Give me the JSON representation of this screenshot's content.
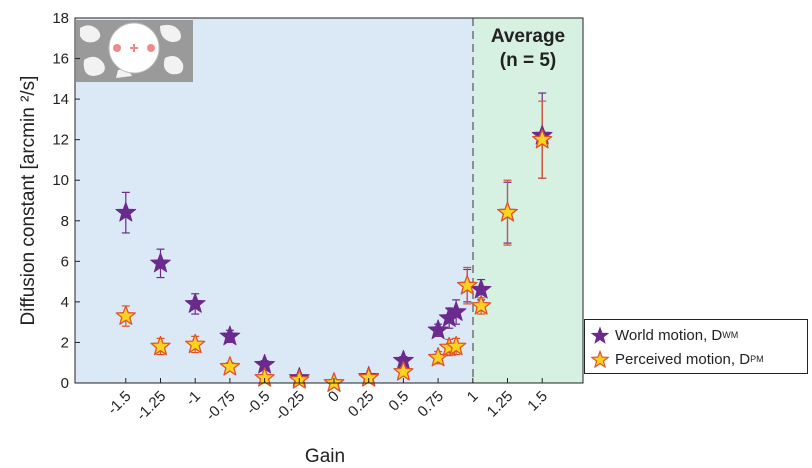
{
  "chart_data": {
    "type": "scatter",
    "xlabel": "Gain",
    "ylabel": "Diffusion constant [arcmin ²/s]",
    "ylim": [
      0,
      18
    ],
    "yticks": [
      "0",
      "2",
      "4",
      "6",
      "8",
      "10",
      "12",
      "14",
      "16",
      "18"
    ],
    "categories": [
      "-1.5",
      "-1.25",
      "-1",
      "-0.75",
      "-0.5",
      "-0.25",
      "0",
      "0.25",
      "0.5",
      "0.75",
      "1",
      "1.25",
      "1.5"
    ],
    "annotation": {
      "line1": "Average",
      "line2": "(n = 5)"
    },
    "legend_position": "right",
    "grid": false,
    "colors": {
      "world": "#6b2a8e",
      "perceived_fill": "#ffd21f",
      "perceived_edge": "#e0522b",
      "left_bg": "#dbe9f6",
      "right_bg": "#d6f0e2"
    },
    "series": [
      {
        "name": "World motion, D",
        "subscript": "WM",
        "points": [
          {
            "x": -1.5,
            "y": 8.4,
            "err": 1.0
          },
          {
            "x": -1.25,
            "y": 5.9,
            "err": 0.7
          },
          {
            "x": -1.0,
            "y": 3.9,
            "err": 0.5
          },
          {
            "x": -0.75,
            "y": 2.3,
            "err": 0.3
          },
          {
            "x": -0.5,
            "y": 0.9,
            "err": 0.2
          },
          {
            "x": -0.25,
            "y": 0.25,
            "err": 0.1
          },
          {
            "x": 0.0,
            "y": 0.0,
            "err": 0.1
          },
          {
            "x": 0.25,
            "y": 0.3,
            "err": 0.1
          },
          {
            "x": 0.5,
            "y": 1.1,
            "err": 0.2
          },
          {
            "x": 0.75,
            "y": 2.6,
            "err": 0.3
          },
          {
            "x": 0.83,
            "y": 3.2,
            "err": 0.5
          },
          {
            "x": 0.88,
            "y": 3.5,
            "err": 0.6
          },
          {
            "x": 0.96,
            "y": 4.8,
            "err": 0.8
          },
          {
            "x": 1.06,
            "y": 4.6,
            "err": 0.5
          },
          {
            "x": 1.25,
            "y": 8.4,
            "err": 1.5
          },
          {
            "x": 1.5,
            "y": 12.2,
            "err": 2.1
          }
        ]
      },
      {
        "name": "Perceived motion, D",
        "subscript": "PM",
        "points": [
          {
            "x": -1.5,
            "y": 3.3,
            "err": 0.5
          },
          {
            "x": -1.25,
            "y": 1.8,
            "err": 0.4
          },
          {
            "x": -1.0,
            "y": 1.9,
            "err": 0.4
          },
          {
            "x": -0.75,
            "y": 0.8,
            "err": 0.2
          },
          {
            "x": -0.5,
            "y": 0.25,
            "err": 0.1
          },
          {
            "x": -0.25,
            "y": 0.15,
            "err": 0.1
          },
          {
            "x": 0.0,
            "y": 0.0,
            "err": 0.1
          },
          {
            "x": 0.25,
            "y": 0.25,
            "err": 0.1
          },
          {
            "x": 0.5,
            "y": 0.55,
            "err": 0.15
          },
          {
            "x": 0.75,
            "y": 1.25,
            "err": 0.3
          },
          {
            "x": 0.83,
            "y": 1.75,
            "err": 0.4
          },
          {
            "x": 0.88,
            "y": 1.8,
            "err": 0.4
          },
          {
            "x": 0.96,
            "y": 4.8,
            "err": 0.9
          },
          {
            "x": 1.06,
            "y": 3.8,
            "err": 0.4
          },
          {
            "x": 1.25,
            "y": 8.4,
            "err": 1.6
          },
          {
            "x": 1.5,
            "y": 12.0,
            "err": 1.9
          }
        ]
      }
    ]
  }
}
